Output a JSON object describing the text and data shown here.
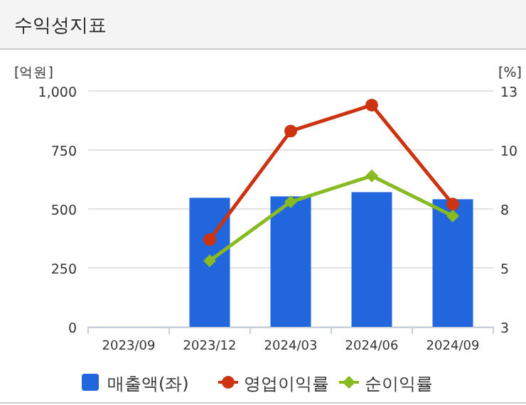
{
  "chart_data": {
    "type": "bar",
    "title": "수익성지표",
    "ylabel": "[억원]",
    "y2label": "[%]",
    "categories": [
      "2023/09",
      "2023/12",
      "2024/03",
      "2024/06",
      "2024/09"
    ],
    "series": [
      {
        "name": "매출액(좌)",
        "color": "#2266dd",
        "values": [
          null,
          547,
          553,
          571,
          541
        ]
      },
      {
        "name": "영업이익률",
        "type": "line",
        "axis": "y2",
        "marker": "circle",
        "color": "#cc3311",
        "values": [
          null,
          6.7,
          11.3,
          12.4,
          8.2
        ]
      },
      {
        "name": "순이익률",
        "type": "line",
        "axis": "y2",
        "marker": "diamond",
        "color": "#88bb22",
        "values": [
          null,
          5.8,
          8.3,
          9.4,
          7.7
        ]
      }
    ],
    "ylim": [
      0,
      1000
    ],
    "yticks": [
      0,
      250,
      500,
      750,
      {
        "value": 1000,
        "label": "1,000"
      }
    ],
    "y2lim": [
      3,
      13
    ],
    "y2ticks": [
      3,
      {
        "value": 5.5,
        "label": "5"
      },
      8,
      {
        "value": 10.5,
        "label": "10"
      },
      13
    ],
    "grid": "y",
    "legend": "bottom"
  }
}
